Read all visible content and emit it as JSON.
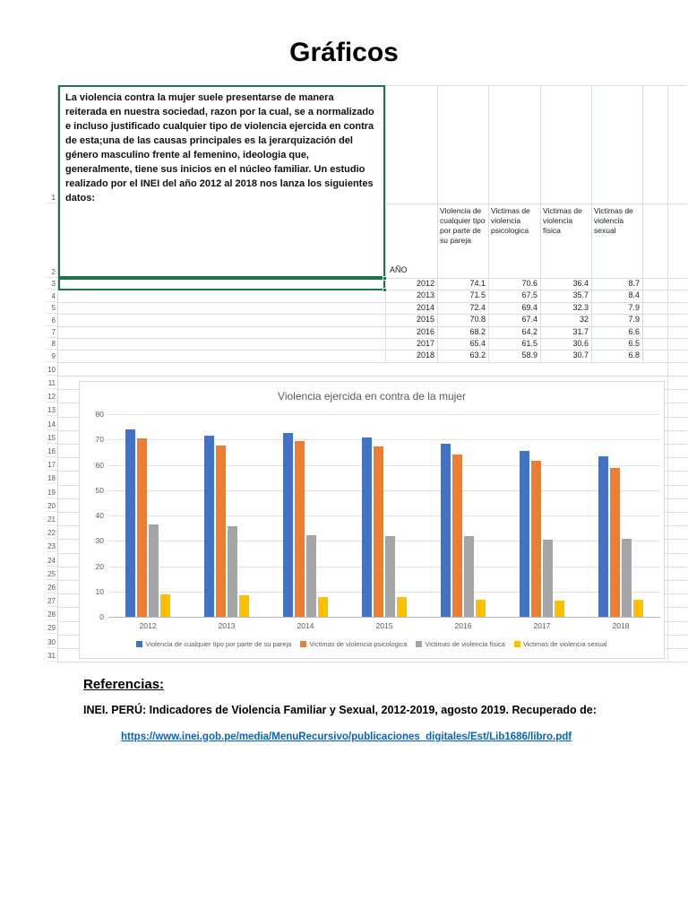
{
  "title": "Gráficos",
  "colors": {
    "selection_green": "#1E7447",
    "link_blue": "#0563C1"
  },
  "spreadsheet": {
    "row_numbers": [
      "1",
      "2",
      "3",
      "4",
      "5",
      "6",
      "7",
      "8",
      "9",
      "10",
      "11",
      "12",
      "13",
      "14",
      "15",
      "16",
      "17",
      "18",
      "19",
      "20",
      "21",
      "22",
      "23",
      "24",
      "25",
      "26",
      "27",
      "28",
      "29",
      "30",
      "31"
    ],
    "intro_text": "La violencia contra la mujer suele presentarse de manera reiterada en nuestra sociedad, razon por la cual, se a normalizado e incluso justificado cualquier tipo de violencia ejercida en contra de esta;una de las causas principales es la jerarquización del género masculino frente al femenino, ideologia que, generalmente, tiene sus inicios en el núcleo familiar. Un estudio realizado por el INEI del año 2012 al 2018 nos lanza los siguientes datos:",
    "table": {
      "year_header": "AÑO",
      "columns": [
        "Violencia de cualquier tipo por parte de su pareja",
        "Victimas de violencia psicologica",
        "Victimas de violencia física",
        "Victimas de violencia sexual"
      ],
      "rows": [
        {
          "year": "2012",
          "values": [
            "74.1",
            "70.6",
            "36.4",
            "8.7"
          ]
        },
        {
          "year": "2013",
          "values": [
            "71.5",
            "67.5",
            "35.7",
            "8.4"
          ]
        },
        {
          "year": "2014",
          "values": [
            "72.4",
            "69.4",
            "32.3",
            "7.9"
          ]
        },
        {
          "year": "2015",
          "values": [
            "70.8",
            "67.4",
            "32",
            "7.9"
          ]
        },
        {
          "year": "2016",
          "values": [
            "68.2",
            "64.2",
            "31.7",
            "6.6"
          ]
        },
        {
          "year": "2017",
          "values": [
            "65.4",
            "61.5",
            "30.6",
            "6.5"
          ]
        },
        {
          "year": "2018",
          "values": [
            "63.2",
            "58.9",
            "30.7",
            "6.8"
          ]
        }
      ]
    }
  },
  "chart_data": {
    "type": "bar",
    "title": "Violencia ejercida en contra de la mujer",
    "categories": [
      "2012",
      "2013",
      "2014",
      "2015",
      "2016",
      "2017",
      "2018"
    ],
    "series": [
      {
        "name": "Violencia de cualquier tipo por parte de su pareja",
        "color": "#4472C4",
        "values": [
          74.1,
          71.5,
          72.4,
          70.8,
          68.2,
          65.4,
          63.2
        ]
      },
      {
        "name": "Victimas de violencia psicologica",
        "color": "#ED7D31",
        "values": [
          70.6,
          67.5,
          69.4,
          67.4,
          64.2,
          61.5,
          58.9
        ]
      },
      {
        "name": "Victimas de violencia física",
        "color": "#A5A5A5",
        "values": [
          36.4,
          35.7,
          32.3,
          32,
          31.7,
          30.6,
          30.7
        ]
      },
      {
        "name": "Victimas de violencia sexual",
        "color": "#FFC000",
        "values": [
          8.7,
          8.4,
          7.9,
          7.9,
          6.6,
          6.5,
          6.8
        ]
      }
    ],
    "xlabel": "",
    "ylabel": "",
    "ylim": [
      0,
      80
    ],
    "yticks": [
      0,
      10,
      20,
      30,
      40,
      50,
      60,
      70,
      80
    ],
    "grid": true,
    "legend_position": "bottom"
  },
  "references": {
    "heading": "Referencias:",
    "citation": "INEI. PERÚ: Indicadores de Violencia Familiar y Sexual, 2012-2019, agosto 2019. Recuperado de:",
    "link": "https://www.inei.gob.pe/media/MenuRecursivo/publicaciones_digitales/Est/Lib1686/libro.pdf"
  }
}
